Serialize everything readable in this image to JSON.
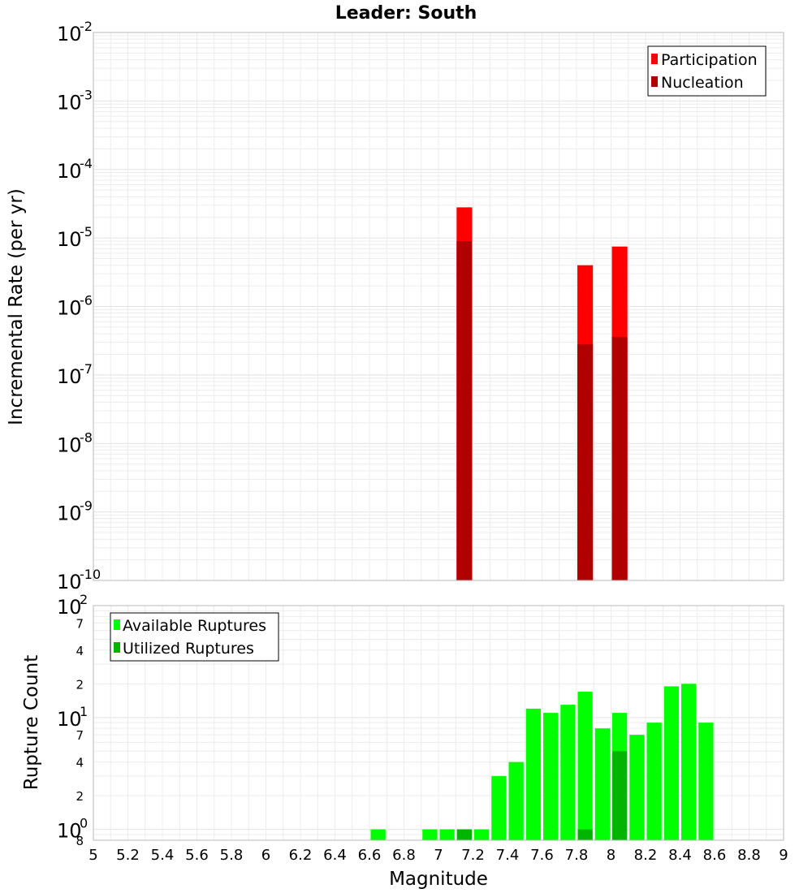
{
  "chart_data": [
    {
      "type": "bar",
      "title": "Leader: South",
      "xlabel": "",
      "ylabel": "Incremental Rate (per yr)",
      "yscale": "log",
      "ylim": [
        1e-10,
        0.01
      ],
      "xlim": [
        5,
        9
      ],
      "bar_width": 0.1,
      "grid": true,
      "legend_position": "top-right",
      "series": [
        {
          "name": "Participation",
          "color": "#ff0000",
          "x": [
            7.15,
            7.85,
            8.05
          ],
          "values": [
            2.8e-05,
            4e-06,
            7.5e-06
          ]
        },
        {
          "name": "Nucleation",
          "color": "#b00000",
          "x": [
            7.15,
            7.85,
            8.05
          ],
          "values": [
            9e-06,
            2.8e-07,
            3.6e-07
          ]
        }
      ],
      "y_tick_exponents": [
        "-2",
        "-3",
        "-4",
        "-5",
        "-6",
        "-7",
        "-8",
        "-9",
        "-10"
      ]
    },
    {
      "type": "bar",
      "title": "",
      "xlabel": "Magnitude",
      "ylabel": "Rupture Count",
      "yscale": "log",
      "ylim": [
        0.8,
        100
      ],
      "xlim": [
        5,
        9
      ],
      "bar_width": 0.1,
      "grid": true,
      "legend_position": "top-left",
      "series": [
        {
          "name": "Available Ruptures",
          "color": "#00ff00",
          "x": [
            6.65,
            6.95,
            7.05,
            7.15,
            7.25,
            7.35,
            7.45,
            7.55,
            7.65,
            7.75,
            7.85,
            7.95,
            8.05,
            8.15,
            8.25,
            8.35,
            8.45,
            8.55
          ],
          "values": [
            1,
            1,
            1,
            1,
            1,
            3,
            4,
            12,
            11,
            13,
            17,
            8,
            11,
            7,
            9,
            19,
            20,
            9
          ]
        },
        {
          "name": "Utilized Ruptures",
          "color": "#00b400",
          "x": [
            7.15,
            7.85,
            8.05
          ],
          "values": [
            1,
            1,
            5
          ]
        }
      ],
      "y_major_ticks": [
        {
          "base": "10",
          "exp": "2"
        },
        {
          "base": "10",
          "exp": "1"
        },
        {
          "base": "10",
          "exp": "0"
        }
      ],
      "y_minor_labels": [
        "7",
        "4",
        "2",
        "7",
        "4",
        "2",
        "8"
      ],
      "x_tick_labels": [
        "5",
        "5.2",
        "5.4",
        "5.6",
        "5.8",
        "6",
        "6.2",
        "6.4",
        "6.6",
        "6.8",
        "7",
        "7.2",
        "7.4",
        "7.6",
        "7.8",
        "8",
        "8.2",
        "8.4",
        "8.6",
        "8.8",
        "9"
      ]
    }
  ]
}
